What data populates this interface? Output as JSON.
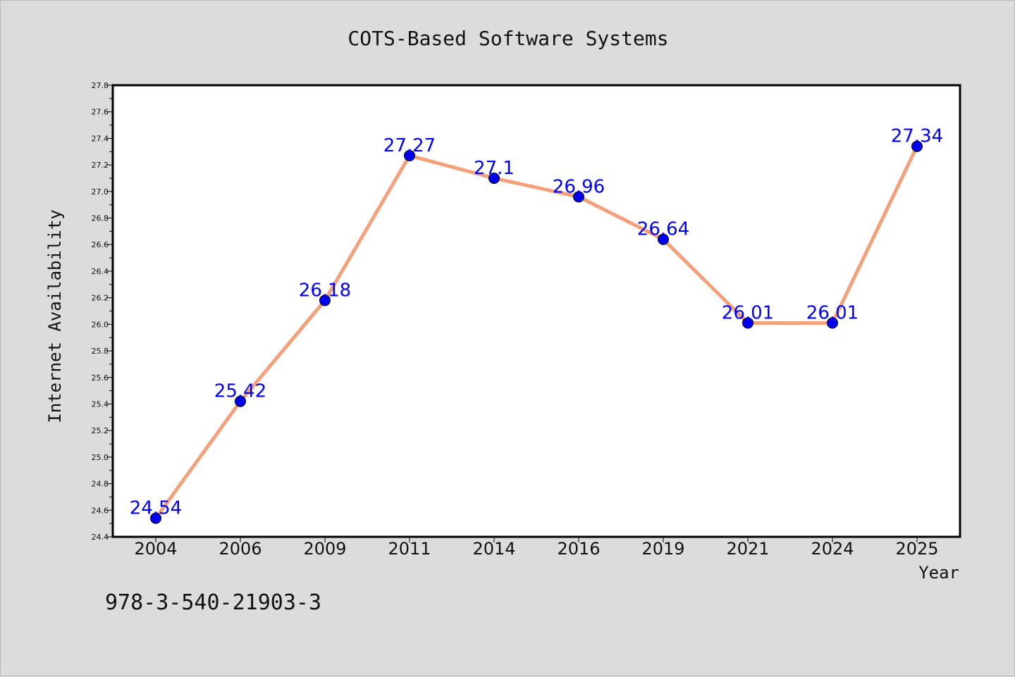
{
  "chart_data": {
    "type": "line",
    "title": "COTS-Based Software Systems",
    "xlabel": "Year",
    "ylabel": "Internet Availability",
    "categories": [
      "2004",
      "2006",
      "2009",
      "2011",
      "2014",
      "2016",
      "2019",
      "2021",
      "2024",
      "2025"
    ],
    "series": [
      {
        "values": [
          24.54,
          25.42,
          26.18,
          27.27,
          27.1,
          26.96,
          26.64,
          26.01,
          26.01,
          27.34
        ]
      }
    ],
    "data_labels": [
      "24.54",
      "25.42",
      "26.18",
      "27.27",
      "27.1",
      "26.96",
      "26.64",
      "26.01",
      "26.01",
      "27.34"
    ],
    "ylim": [
      24.4,
      27.8
    ],
    "yticks": [
      "24.4",
      "24.6",
      "24.8",
      "25.0",
      "25.2",
      "25.4",
      "25.6",
      "25.8",
      "26.0",
      "26.2",
      "26.4",
      "26.6",
      "26.8",
      "27.0",
      "27.2",
      "27.4",
      "27.6",
      "27.8"
    ],
    "grid": false,
    "legend": "none",
    "colors": {
      "line": "#f4a07a",
      "marker": "#0000ee",
      "label": "#0000ff",
      "background": "#dcdcdc",
      "plot_background": "#ffffff"
    }
  },
  "footnote": "978-3-540-21903-3"
}
